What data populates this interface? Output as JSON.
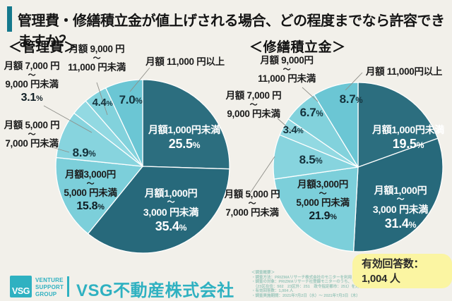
{
  "header": {
    "title": "管理費・修繕積立金が値上げされる場合、どの程度までなら許容できますか？"
  },
  "charts": [
    {
      "heading": "＜管理費＞",
      "labels": {
        "l7000_9000": {
          "lines": [
            "月額 7,000 円",
            "〜",
            "9,000 円未満",
            "3.1%"
          ]
        },
        "l9000_11000": {
          "lines": [
            "月額 9,000 円",
            "〜",
            "11,000 円未満"
          ]
        },
        "l11000p": {
          "lines": [
            "月額 11,000 円以上"
          ]
        },
        "l5000_7000": {
          "lines": [
            "月額 5,000 円",
            "〜",
            "7,000 円未満"
          ]
        },
        "l3000_5000": {
          "lines": [
            "月額3,000円",
            "〜",
            "5,000 円未満",
            "15.8%"
          ]
        },
        "lt1000": {
          "lines": [
            "月額1,000円未満",
            "25.5%"
          ]
        },
        "l1000_3000": {
          "lines": [
            "月額1,000円",
            "〜",
            "3,000 円未満",
            "35.4%"
          ]
        },
        "p89": "8.9%",
        "p44": "4.4%",
        "p70": "7.0%"
      }
    },
    {
      "heading": "＜修繕積立金＞",
      "labels": {
        "l9000_11000": {
          "lines": [
            "月額 9,000円",
            "〜",
            "11,000 円未満"
          ]
        },
        "l11000p": {
          "lines": [
            "月額 11,000円以上"
          ]
        },
        "l7000_9000": {
          "lines": [
            "月額 7,000 円",
            "〜",
            "9,000 円未満"
          ]
        },
        "l5000_7000": {
          "lines": [
            "月額 5,000 円",
            "〜",
            "7,000 円未満"
          ]
        },
        "l3000_5000": {
          "lines": [
            "月額3,000円",
            "〜",
            "5,000 円未満",
            "21.9%"
          ]
        },
        "lt1000": {
          "lines": [
            "月額1,000円未満",
            "19.5%"
          ]
        },
        "l1000_3000": {
          "lines": [
            "月額1,000円",
            "〜",
            "3,000 円未満",
            "31.4%"
          ]
        },
        "p87": "8.7%",
        "p67": "6.7%",
        "p34": "3.4%",
        "p85": "8.5%"
      }
    }
  ],
  "chart_data": [
    {
      "type": "pie",
      "title": "管理費",
      "unit": "%",
      "start": "top",
      "direction": "clockwise",
      "categories": [
        "月額1,000円未満",
        "月額1,000円〜3,000円未満",
        "月額3,000円〜5,000円未満",
        "月額5,000円〜7,000円未満",
        "月額7,000円〜9,000円未満",
        "月額9,000円〜11,000円未満",
        "月額11,000円以上"
      ],
      "values": [
        25.5,
        35.4,
        15.8,
        8.9,
        3.1,
        4.4,
        7.0
      ],
      "colors": [
        "#2C6E7F",
        "#27697B",
        "#7CCFDA",
        "#87D4DE",
        "#92D9E2",
        "#82D2DC",
        "#6BC6D4"
      ]
    },
    {
      "type": "pie",
      "title": "修繕積立金",
      "unit": "%",
      "start": "top",
      "direction": "clockwise",
      "categories": [
        "月額1,000円未満",
        "月額1,000円〜3,000円未満",
        "月額3,000円〜5,000円未満",
        "月額5,000円〜7,000円未満",
        "月額7,000円〜9,000円未満",
        "月額9,000円〜11,000円未満",
        "月額11,000円以上"
      ],
      "values": [
        19.5,
        31.4,
        21.9,
        8.5,
        3.4,
        6.7,
        8.7
      ],
      "colors": [
        "#2C6E7F",
        "#27697B",
        "#7CCFDA",
        "#87D4DE",
        "#92D9E2",
        "#82D2DC",
        "#6BC6D4"
      ]
    }
  ],
  "badge": {
    "text": "有効回答数：1,004 人",
    "bg": "#FBF5A2"
  },
  "survey_notes": [
    "＜調査概要＞",
    "・調査方法：PRIZMAリサーチ株式会社のモニターを利用した WEB アンケート方式で実施",
    "・調査の対象：PRIZMAリサーチ社登録モニターのうち、マンションを購入し、現在も居住中と回答した男女",
    "　（23区在住：502　23区外：251　政令指定都市：251）を対象に実施",
    "・有効回答数：1,004 人",
    "・調査実施期間：2021年7月2日（水）〜 2021年7月3日（木）"
  ],
  "footer": {
    "logo_text": "VSG",
    "logo_caption": [
      "VENTURE",
      "SUPPORT",
      "GROUP"
    ],
    "company": "VSG不動産株式会社"
  },
  "colors": {
    "background": "#F2F0EA",
    "title_accent": "#15798D",
    "brand_teal": "#2FB1C1",
    "pie_dark": "#2C6E7F",
    "pie_light": "#7CCFDA",
    "badge_bg": "#FBF5A2"
  }
}
